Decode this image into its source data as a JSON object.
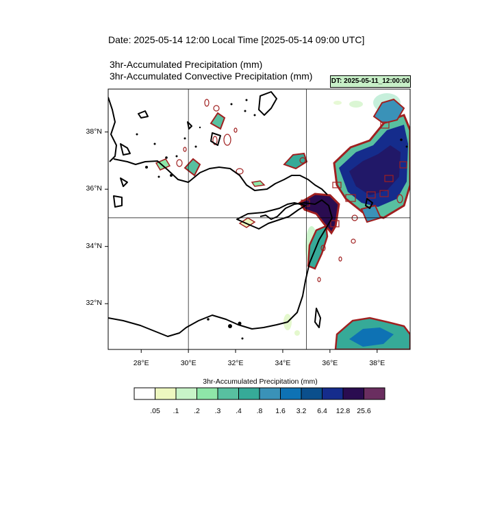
{
  "header": {
    "date_line": "Date: 2025-05-14  12:00 Local Time [2025-05-14  09:00 UTC]",
    "title_1": "3hr-Accumulated Precipitation   (mm)",
    "title_2": "3hr-Accumulated Convective Precipitation   (mm)",
    "dt_label": "DT: 2025-05-11_12:00:00"
  },
  "map": {
    "extent": {
      "lon_min": 26.6,
      "lon_max": 39.4,
      "lat_min": 30.4,
      "lat_max": 39.5
    },
    "lon_ticks": [
      28,
      30,
      32,
      34,
      36,
      38
    ],
    "lon_labels": [
      "28°E",
      "30°E",
      "32°E",
      "34°E",
      "36°E",
      "38°E"
    ],
    "lat_ticks": [
      32,
      34,
      36,
      38
    ],
    "lat_labels": [
      "32°N",
      "34°N",
      "36°N",
      "38°N"
    ],
    "grid_lons": [
      30,
      35
    ],
    "grid_lats": [
      35
    ]
  },
  "colorbar": {
    "title": "3hr-Accumulated Precipitation   (mm)",
    "colors": [
      "#ffffff",
      "#edf8c0",
      "#c8f4c8",
      "#8ee6a8",
      "#58c0a0",
      "#36aa98",
      "#3a92b8",
      "#0e72b4",
      "#0b4f8c",
      "#152c8c",
      "#2a0c50",
      "#6a2e60"
    ],
    "labels": [
      ".05",
      ".1",
      ".2",
      ".3",
      ".4",
      ".8",
      "1.6",
      "3.2",
      "6.4",
      "12.8",
      "25.6"
    ]
  },
  "colors": {
    "coast": "#000000",
    "convective_contour": "#a02020",
    "heavy_precip": "#1a2a80",
    "grid": "#000000"
  }
}
